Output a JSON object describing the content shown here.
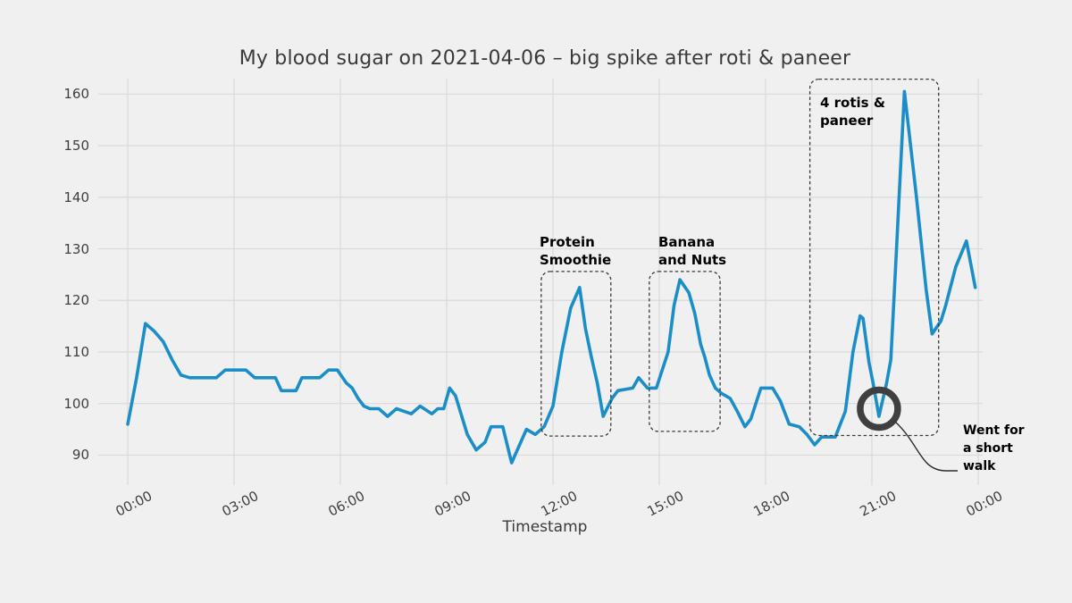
{
  "figure": {
    "background_color": "#f0f0f0",
    "grid_color": "#d9d9d9",
    "line_color": "#1b8ec8",
    "box_color": "#3a3a3a",
    "title_color": "#3a3a3a"
  },
  "chart_data": {
    "type": "line",
    "title": "My blood sugar on 2021-04-06 – big spike after roti & paneer",
    "xlabel": "Timestamp",
    "ylabel": "",
    "legend": "none",
    "grid": true,
    "ylim": [
      86,
      163
    ],
    "y_ticks": [
      90,
      100,
      110,
      120,
      130,
      140,
      150,
      160
    ],
    "x_tick_minutes": [
      0,
      180,
      360,
      540,
      720,
      900,
      1080,
      1260,
      1440
    ],
    "x_tick_labels": [
      "00:00",
      "03:00",
      "06:00",
      "09:00",
      "12:00",
      "15:00",
      "18:00",
      "21:00",
      "00:00"
    ],
    "series": [
      {
        "name": "blood sugar",
        "points": [
          [
            0,
            96
          ],
          [
            15,
            105
          ],
          [
            30,
            115.5
          ],
          [
            45,
            114
          ],
          [
            60,
            112
          ],
          [
            75,
            108.5
          ],
          [
            90,
            105.5
          ],
          [
            105,
            105
          ],
          [
            150,
            105
          ],
          [
            165,
            106.5
          ],
          [
            200,
            106.5
          ],
          [
            215,
            105
          ],
          [
            250,
            105
          ],
          [
            260,
            102.5
          ],
          [
            285,
            102.5
          ],
          [
            295,
            105
          ],
          [
            325,
            105
          ],
          [
            340,
            106.5
          ],
          [
            355,
            106.5
          ],
          [
            370,
            104
          ],
          [
            380,
            103
          ],
          [
            390,
            101
          ],
          [
            400,
            99.5
          ],
          [
            410,
            99
          ],
          [
            425,
            99
          ],
          [
            440,
            97.5
          ],
          [
            455,
            99
          ],
          [
            480,
            98
          ],
          [
            495,
            99.5
          ],
          [
            515,
            98
          ],
          [
            525,
            99
          ],
          [
            535,
            99
          ],
          [
            545,
            103
          ],
          [
            555,
            101.5
          ],
          [
            575,
            94
          ],
          [
            590,
            91
          ],
          [
            605,
            92.5
          ],
          [
            615,
            95.5
          ],
          [
            635,
            95.5
          ],
          [
            650,
            88.5
          ],
          [
            675,
            95
          ],
          [
            690,
            94
          ],
          [
            705,
            95.5
          ],
          [
            720,
            99.5
          ],
          [
            735,
            110
          ],
          [
            750,
            118.5
          ],
          [
            765,
            122.5
          ],
          [
            775,
            114.5
          ],
          [
            785,
            109
          ],
          [
            795,
            104
          ],
          [
            805,
            97.5
          ],
          [
            820,
            101
          ],
          [
            830,
            102.5
          ],
          [
            855,
            103
          ],
          [
            865,
            105
          ],
          [
            880,
            103
          ],
          [
            895,
            103
          ],
          [
            905,
            106.5
          ],
          [
            915,
            110
          ],
          [
            925,
            119
          ],
          [
            935,
            124
          ],
          [
            950,
            121.5
          ],
          [
            960,
            117.5
          ],
          [
            970,
            111.5
          ],
          [
            977,
            109
          ],
          [
            985,
            105.5
          ],
          [
            995,
            103
          ],
          [
            1005,
            102
          ],
          [
            1020,
            101
          ],
          [
            1032,
            98.5
          ],
          [
            1045,
            95.5
          ],
          [
            1055,
            97
          ],
          [
            1072,
            103
          ],
          [
            1092,
            103
          ],
          [
            1105,
            100.5
          ],
          [
            1120,
            96
          ],
          [
            1137,
            95.5
          ],
          [
            1150,
            94
          ],
          [
            1163,
            92
          ],
          [
            1175,
            93.5
          ],
          [
            1198,
            93.5
          ],
          [
            1215,
            98.5
          ],
          [
            1228,
            110
          ],
          [
            1240,
            117
          ],
          [
            1245,
            116.5
          ],
          [
            1255,
            108
          ],
          [
            1262,
            104
          ],
          [
            1272,
            97.5
          ],
          [
            1285,
            104
          ],
          [
            1292,
            108.5
          ],
          [
            1300,
            126
          ],
          [
            1315,
            160.5
          ],
          [
            1335,
            140.5
          ],
          [
            1352,
            122
          ],
          [
            1362,
            113.5
          ],
          [
            1377,
            116
          ],
          [
            1385,
            119
          ],
          [
            1402,
            126.5
          ],
          [
            1420,
            131.5
          ],
          [
            1435,
            122.5
          ]
        ]
      }
    ],
    "annotations": [
      {
        "id": "protein-smoothie",
        "lines": [
          "Protein",
          "Smoothie"
        ],
        "box": {
          "t0": "11:40",
          "t1": "13:38",
          "v0": 93.7,
          "v1": 125.6
        }
      },
      {
        "id": "banana-nuts",
        "lines": [
          "Banana",
          "and Nuts"
        ],
        "box": {
          "t0": "14:43",
          "t1": "16:43",
          "v0": 94.6,
          "v1": 125.6
        }
      },
      {
        "id": "rotis-paneer",
        "lines": [
          "4 rotis &",
          "paneer"
        ],
        "box": {
          "t0": "19:15",
          "t1": "22:53",
          "v0": 93.8,
          "v1": 162.9
        }
      },
      {
        "id": "short-walk",
        "lines": [
          "Went for",
          "a short",
          "walk"
        ],
        "marker": {
          "t": "21:12",
          "v": 99,
          "r": 21
        }
      }
    ]
  }
}
